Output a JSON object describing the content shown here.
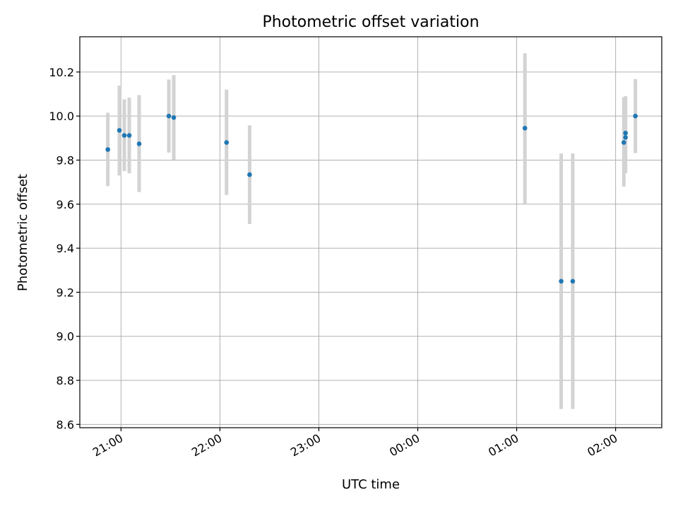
{
  "chart_data": {
    "type": "scatter",
    "title": "Photometric offset variation",
    "xlabel": "UTC time",
    "ylabel": "Photometric offset",
    "grid": true,
    "xlim": [
      "20:35",
      "02:28"
    ],
    "ylim": [
      8.585,
      10.36
    ],
    "x_ticks": [
      "21:00",
      "22:00",
      "23:00",
      "00:00",
      "01:00",
      "02:00"
    ],
    "y_ticks": [
      8.6,
      8.8,
      9.0,
      9.2,
      9.4,
      9.6,
      9.8,
      10.0,
      10.2
    ],
    "errorbar_color": "#d3d3d3",
    "marker_color": "#1f77b4",
    "points": [
      {
        "time": "20:52",
        "value": 9.848,
        "low": 9.682,
        "high": 10.015
      },
      {
        "time": "20:59",
        "value": 9.935,
        "low": 9.73,
        "high": 10.138
      },
      {
        "time": "21:02",
        "value": 9.912,
        "low": 9.75,
        "high": 10.076
      },
      {
        "time": "21:05",
        "value": 9.912,
        "low": 9.74,
        "high": 10.083
      },
      {
        "time": "21:11",
        "value": 9.874,
        "low": 9.655,
        "high": 10.095
      },
      {
        "time": "21:29",
        "value": 10.0,
        "low": 9.834,
        "high": 10.166
      },
      {
        "time": "21:32",
        "value": 9.993,
        "low": 9.802,
        "high": 10.186
      },
      {
        "time": "22:04",
        "value": 9.88,
        "low": 9.642,
        "high": 10.12
      },
      {
        "time": "22:18",
        "value": 9.734,
        "low": 9.51,
        "high": 9.958
      },
      {
        "time": "01:05",
        "value": 9.945,
        "low": 9.6,
        "high": 10.285
      },
      {
        "time": "01:27",
        "value": 9.25,
        "low": 8.67,
        "high": 9.83
      },
      {
        "time": "01:34",
        "value": 9.25,
        "low": 8.67,
        "high": 9.83
      },
      {
        "time": "02:05",
        "value": 9.88,
        "low": 9.68,
        "high": 10.085
      },
      {
        "time": "02:06",
        "value": 9.903,
        "low": 9.74,
        "high": 10.06
      },
      {
        "time": "02:06",
        "value": 9.923,
        "low": 9.76,
        "high": 10.09
      },
      {
        "time": "02:12",
        "value": 10.0,
        "low": 9.832,
        "high": 10.168
      }
    ]
  }
}
